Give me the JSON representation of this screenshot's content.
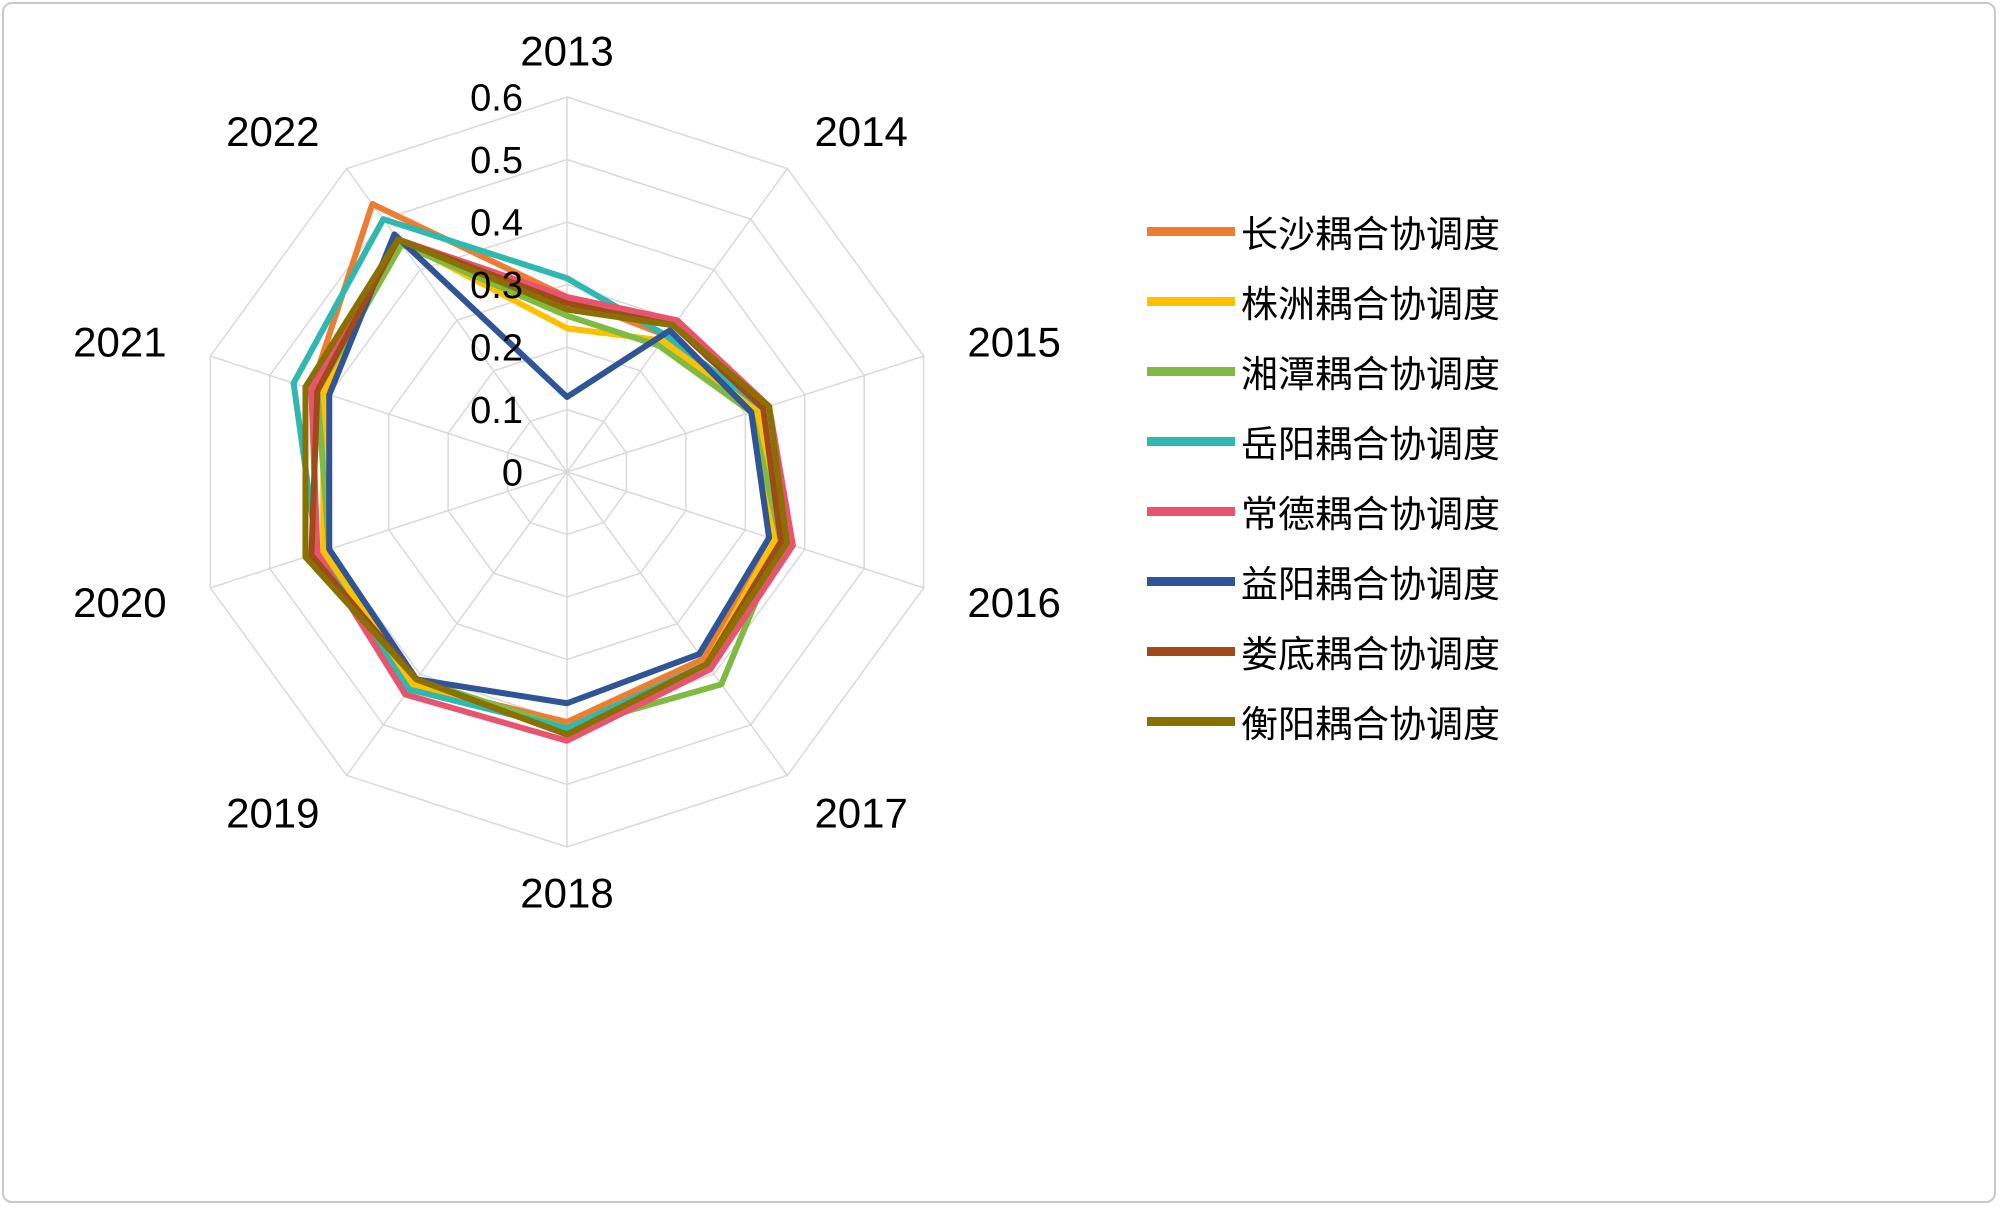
{
  "chart_data": {
    "type": "radar",
    "title": "",
    "categories": [
      "2013",
      "2014",
      "2015",
      "2016",
      "2017",
      "2018",
      "2019",
      "2020",
      "2021",
      "2022"
    ],
    "series": [
      {
        "name": "长沙耦合协调度",
        "color": "#ED7D31",
        "values": [
          0.28,
          0.27,
          0.31,
          0.34,
          0.37,
          0.4,
          0.42,
          0.42,
          0.43,
          0.53
        ]
      },
      {
        "name": "株洲耦合协调度",
        "color": "#FFC000",
        "values": [
          0.23,
          0.26,
          0.32,
          0.35,
          0.38,
          0.41,
          0.42,
          0.41,
          0.41,
          0.46
        ]
      },
      {
        "name": "湘潭耦合协调度",
        "color": "#7FBA42",
        "values": [
          0.25,
          0.25,
          0.31,
          0.36,
          0.42,
          0.41,
          0.41,
          0.4,
          0.42,
          0.45
        ]
      },
      {
        "name": "岳阳耦合协调度",
        "color": "#2FB8B0",
        "values": [
          0.31,
          0.27,
          0.33,
          0.36,
          0.38,
          0.41,
          0.43,
          0.42,
          0.46,
          0.5
        ]
      },
      {
        "name": "常德耦合协调度",
        "color": "#E8546F",
        "values": [
          0.28,
          0.3,
          0.34,
          0.38,
          0.39,
          0.43,
          0.44,
          0.42,
          0.43,
          0.46
        ]
      },
      {
        "name": "益阳耦合协调度",
        "color": "#2F5597",
        "values": [
          0.12,
          0.28,
          0.31,
          0.34,
          0.36,
          0.37,
          0.41,
          0.4,
          0.4,
          0.47
        ]
      },
      {
        "name": "娄底耦合协调度",
        "color": "#9E4B19",
        "values": [
          0.27,
          0.29,
          0.33,
          0.36,
          0.38,
          0.42,
          0.41,
          0.43,
          0.42,
          0.46
        ]
      },
      {
        "name": "衡阳耦合协调度",
        "color": "#8A7000",
        "values": [
          0.26,
          0.29,
          0.34,
          0.37,
          0.38,
          0.42,
          0.41,
          0.44,
          0.44,
          0.46
        ]
      }
    ],
    "radial_axis": {
      "min": 0,
      "max": 0.6,
      "ticks": [
        "0",
        "0.1",
        "0.2",
        "0.3",
        "0.4",
        "0.5",
        "0.6"
      ]
    },
    "grid": true,
    "legend_position": "right"
  },
  "colors": {
    "grid": "#D9D9D9",
    "background": "#FFFFFF",
    "border": "#C9C9C9",
    "text": "#000000"
  }
}
